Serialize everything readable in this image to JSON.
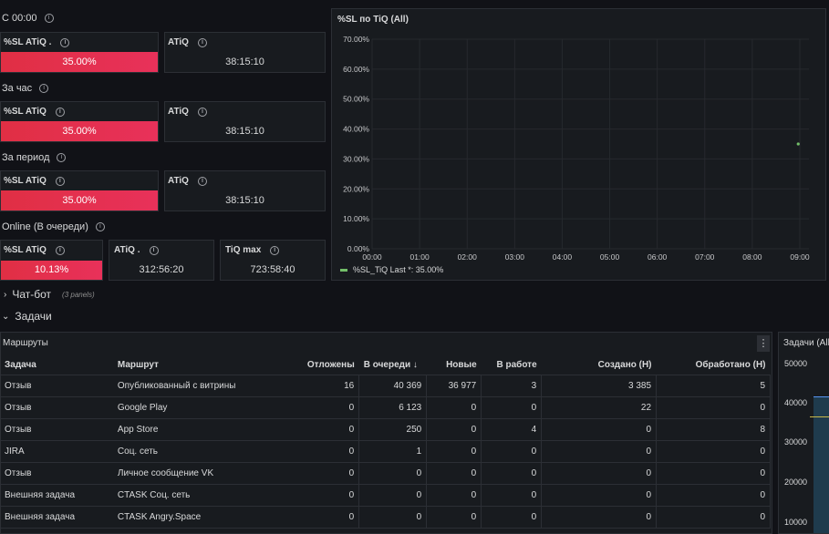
{
  "sections": {
    "s00": "С 00:00",
    "hour": "За час",
    "period": "За период",
    "online": "Online (В очереди)"
  },
  "stats": {
    "s00_sl": {
      "title": "%SL ATiQ .",
      "value": "35.00%"
    },
    "s00_atiq": {
      "title": "ATiQ",
      "value": "38:15:10"
    },
    "hour_sl": {
      "title": "%SL ATiQ",
      "value": "35.00%"
    },
    "hour_atiq": {
      "title": "ATiQ",
      "value": "38:15:10"
    },
    "period_sl": {
      "title": "%SL ATiQ",
      "value": "35.00%"
    },
    "period_atiq": {
      "title": "ATiQ",
      "value": "38:15:10"
    },
    "online_sl": {
      "title": "%SL ATiQ",
      "value": "10.13%"
    },
    "online_atiq": {
      "title": "ATiQ .",
      "value": "312:56:20"
    },
    "online_tiq": {
      "title": "TiQ max",
      "value": "723:58:40"
    }
  },
  "chart_panel_title": "%SL по TiQ (All)",
  "legend_text": "%SL_TiQ  Last *: 35.00%",
  "chart_data": {
    "type": "scatter",
    "title": "%SL по TiQ (All)",
    "x_ticks": [
      "00:00",
      "01:00",
      "02:00",
      "03:00",
      "04:00",
      "05:00",
      "06:00",
      "07:00",
      "08:00",
      "09:00"
    ],
    "y_ticks": [
      "0.00%",
      "10.00%",
      "20.00%",
      "30.00%",
      "40.00%",
      "50.00%",
      "60.00%",
      "70.00%"
    ],
    "ylim": [
      0,
      70
    ],
    "series": [
      {
        "name": "%SL_TiQ",
        "color": "#73bf69",
        "points": [
          {
            "x": "08:58",
            "y": 35.0
          }
        ]
      }
    ],
    "legend_position": "bottom-left"
  },
  "collapsed_row": {
    "title": "Чат-бот",
    "sub": "(3 panels)"
  },
  "open_row": {
    "title": "Задачи"
  },
  "table_panel": {
    "title": "Маршруты",
    "menu": "⋮"
  },
  "table": {
    "headers": [
      "Задача",
      "Маршрут",
      "Отложены",
      "В очереди ↓",
      "Новые",
      "В работе",
      "Создано (Н)",
      "Обработано (Н)"
    ],
    "rows": [
      [
        "Отзыв",
        "Опубликованный с витрины",
        "16",
        "40 369",
        "36 977",
        "3",
        "3 385",
        "5"
      ],
      [
        "Отзыв",
        "Google Play",
        "0",
        "6 123",
        "0",
        "0",
        "22",
        "0"
      ],
      [
        "Отзыв",
        "App Store",
        "0",
        "250",
        "0",
        "4",
        "0",
        "8"
      ],
      [
        "JIRA",
        "Соц. сеть",
        "0",
        "1",
        "0",
        "0",
        "0",
        "0"
      ],
      [
        "Отзыв",
        "Личное сообщение VK",
        "0",
        "0",
        "0",
        "0",
        "0",
        "0"
      ],
      [
        "Внешняя задача",
        "CTASK Соц. сеть",
        "0",
        "0",
        "0",
        "0",
        "0",
        "0"
      ],
      [
        "Внешняя задача",
        "CTASK Angry.Space",
        "0",
        "0",
        "0",
        "0",
        "0",
        "0"
      ]
    ]
  },
  "right_panel": {
    "title": "Задачи (All)",
    "y_ticks": [
      "50000",
      "40000",
      "30000",
      "20000",
      "10000"
    ]
  },
  "colors": {
    "accent_red": "#e02f44",
    "series_green": "#73bf69",
    "yellow_line": "#c9b84a"
  }
}
